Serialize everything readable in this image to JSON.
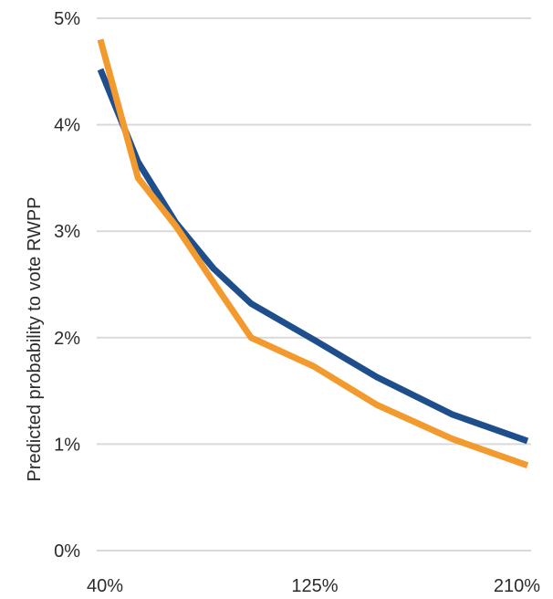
{
  "chart_data": {
    "type": "line",
    "title": "",
    "xlabel": "",
    "ylabel": "Predicted probability to vote RWPP",
    "x_ticks": [
      "40%",
      "125%",
      "210%"
    ],
    "y_ticks": [
      "0%",
      "1%",
      "2%",
      "3%",
      "4%",
      "5%"
    ],
    "xlim": [
      40,
      210
    ],
    "ylim": [
      0,
      5
    ],
    "grid": true,
    "legend": "none",
    "series": [
      {
        "color": "#1f4e8c",
        "x": [
          40,
          55,
          70,
          85,
          100,
          125,
          150,
          180,
          210
        ],
        "y": [
          4.52,
          3.65,
          3.08,
          2.65,
          2.32,
          1.98,
          1.63,
          1.28,
          1.03
        ]
      },
      {
        "color": "#f29a2e",
        "x": [
          40,
          55,
          70,
          85,
          100,
          125,
          150,
          180,
          210
        ],
        "y": [
          4.8,
          3.5,
          3.05,
          2.52,
          2.0,
          1.73,
          1.37,
          1.05,
          0.8
        ]
      }
    ]
  }
}
